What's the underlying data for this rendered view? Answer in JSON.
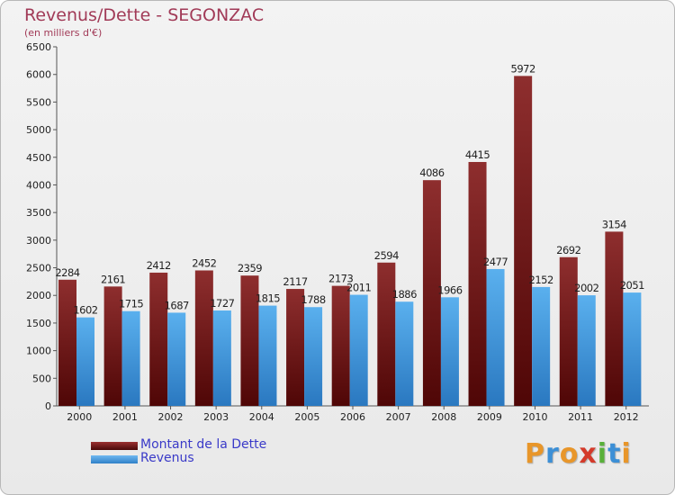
{
  "chart_data": {
    "type": "bar",
    "title": "Revenus/Dette - SEGONZAC",
    "subtitle": "(en milliers d'€)",
    "categories": [
      "2000",
      "2001",
      "2002",
      "2003",
      "2004",
      "2005",
      "2006",
      "2007",
      "2008",
      "2009",
      "2010",
      "2011",
      "2012"
    ],
    "series": [
      {
        "name": "Montant de la Dette",
        "color": "#7a1c1c",
        "values": [
          2284,
          2161,
          2412,
          2452,
          2359,
          2117,
          2173,
          2594,
          4086,
          4415,
          5972,
          2692,
          3154
        ]
      },
      {
        "name": "Revenus",
        "color": "#4a9ee0",
        "values": [
          1602,
          1715,
          1687,
          1727,
          1815,
          1788,
          2011,
          1886,
          1966,
          2477,
          2152,
          2002,
          2051
        ]
      }
    ],
    "ylim": [
      0,
      6500
    ],
    "yticks": [
      0,
      500,
      1000,
      1500,
      2000,
      2500,
      3000,
      3500,
      4000,
      4500,
      5000,
      5500,
      6000,
      6500
    ],
    "xlabel": "",
    "ylabel": "",
    "grid": false,
    "legend": "bottom-left"
  },
  "logo": {
    "letters": [
      {
        "ch": "P",
        "color": "#e8962a"
      },
      {
        "ch": "r",
        "color": "#3c8fd6"
      },
      {
        "ch": "o",
        "color": "#e8962a"
      },
      {
        "ch": "x",
        "color": "#d43a2a"
      },
      {
        "ch": "i",
        "color": "#58b03a"
      },
      {
        "ch": "t",
        "color": "#3c8fd6"
      },
      {
        "ch": "i",
        "color": "#e8962a"
      }
    ]
  }
}
